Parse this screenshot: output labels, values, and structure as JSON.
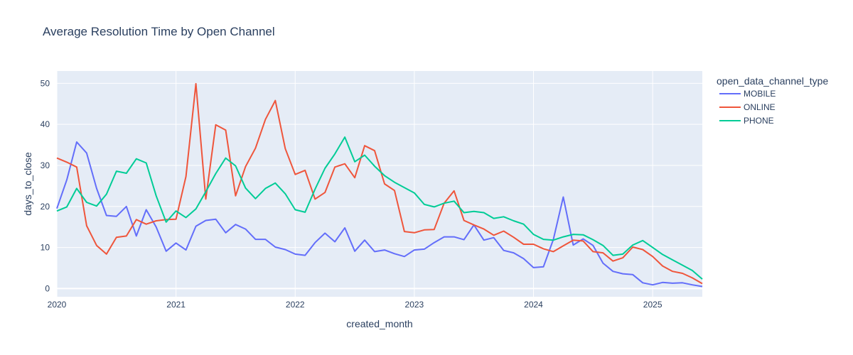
{
  "chart_data": {
    "type": "line",
    "title": "Average Resolution Time by Open Channel",
    "xlabel": "created_month",
    "ylabel": "days_to_close",
    "legend_title": "open_data_channel_type",
    "legend_position": "right",
    "grid": true,
    "colors": {
      "plot_bg": "#e5ecf6",
      "grid": "#ffffff",
      "text": "#2a3f5f"
    },
    "xlim": [
      "2020-01",
      "2025-06"
    ],
    "ylim": [
      -2,
      53
    ],
    "x_ticks": [
      "2020",
      "2021",
      "2022",
      "2023",
      "2024",
      "2025"
    ],
    "y_ticks": [
      0,
      10,
      20,
      30,
      40,
      50
    ],
    "x": [
      "2020-01",
      "2020-02",
      "2020-03",
      "2020-04",
      "2020-05",
      "2020-06",
      "2020-07",
      "2020-08",
      "2020-09",
      "2020-10",
      "2020-11",
      "2020-12",
      "2021-01",
      "2021-02",
      "2021-03",
      "2021-04",
      "2021-05",
      "2021-06",
      "2021-07",
      "2021-08",
      "2021-09",
      "2021-10",
      "2021-11",
      "2021-12",
      "2022-01",
      "2022-02",
      "2022-03",
      "2022-04",
      "2022-05",
      "2022-06",
      "2022-07",
      "2022-08",
      "2022-09",
      "2022-10",
      "2022-11",
      "2022-12",
      "2023-01",
      "2023-02",
      "2023-03",
      "2023-04",
      "2023-05",
      "2023-06",
      "2023-07",
      "2023-08",
      "2023-09",
      "2023-10",
      "2023-11",
      "2023-12",
      "2024-01",
      "2024-02",
      "2024-03",
      "2024-04",
      "2024-05",
      "2024-06",
      "2024-07",
      "2024-08",
      "2024-09",
      "2024-10",
      "2024-11",
      "2024-12",
      "2025-01",
      "2025-02",
      "2025-03",
      "2025-04",
      "2025-05",
      "2025-06"
    ],
    "series": [
      {
        "name": "MOBILE",
        "color": "#636efa",
        "values": [
          19.5,
          26.5,
          35.7,
          33,
          24.4,
          17.8,
          17.6,
          20,
          12.8,
          19.2,
          15,
          9.1,
          11.1,
          9.4,
          15.2,
          16.6,
          16.9,
          13.6,
          15.6,
          14.5,
          12,
          12,
          10.1,
          9.5,
          8.4,
          8.1,
          11.2,
          13.5,
          11.4,
          14.8,
          9.1,
          11.8,
          9,
          9.4,
          8.5,
          7.8,
          9.4,
          9.6,
          11.2,
          12.6,
          12.6,
          11.9,
          15.5,
          11.8,
          12.4,
          9.3,
          8.7,
          7.3,
          5.1,
          5.3,
          12,
          22.3,
          10.6,
          12.1,
          10.5,
          6.2,
          4.2,
          3.6,
          3.4,
          1.4,
          0.9,
          1.5,
          1.3,
          1.4,
          0.9,
          0.5
        ]
      },
      {
        "name": "ONLINE",
        "color": "#ef553b",
        "values": [
          31.8,
          30.8,
          29.6,
          15.3,
          10.5,
          8.4,
          12.5,
          12.8,
          16.8,
          15.7,
          16.5,
          16.8,
          16.9,
          27.3,
          49.9,
          21.8,
          39.9,
          38.6,
          22.6,
          29.7,
          34.2,
          41.2,
          45.8,
          34.1,
          27.8,
          28.8,
          21.8,
          23.4,
          29.6,
          30.4,
          27,
          34.8,
          33.6,
          25.5,
          23.9,
          13.9,
          13.6,
          14.3,
          14.4,
          20.8,
          23.8,
          16.6,
          15.5,
          14.5,
          13,
          14,
          12.5,
          10.8,
          10.8,
          9.7,
          9,
          10.4,
          11.8,
          11.6,
          9,
          8.7,
          6.7,
          7.5,
          10.1,
          9.5,
          7.8,
          5.5,
          4.2,
          3.7,
          2.6,
          1.2
        ]
      },
      {
        "name": "PHONE",
        "color": "#00cc96",
        "values": [
          18.9,
          19.9,
          24.4,
          21,
          20.1,
          23,
          28.6,
          28.1,
          31.6,
          30.6,
          22.6,
          16.2,
          18.9,
          17.3,
          19.4,
          23.6,
          28,
          31.8,
          29.9,
          24.5,
          21.9,
          24.4,
          25.7,
          23.1,
          19.2,
          18.6,
          24.2,
          29.3,
          32.8,
          36.9,
          30.9,
          32.5,
          29.8,
          27.5,
          25.9,
          24.6,
          23.3,
          20.5,
          19.9,
          20.8,
          21.3,
          18.5,
          18.8,
          18.5,
          17.1,
          17.5,
          16.5,
          15.7,
          13.2,
          12,
          11.8,
          12.6,
          13.2,
          13.1,
          11.9,
          10.5,
          8.1,
          8.4,
          10.6,
          11.7,
          10,
          8.3,
          7,
          5.7,
          4.4,
          2.3
        ]
      }
    ]
  }
}
